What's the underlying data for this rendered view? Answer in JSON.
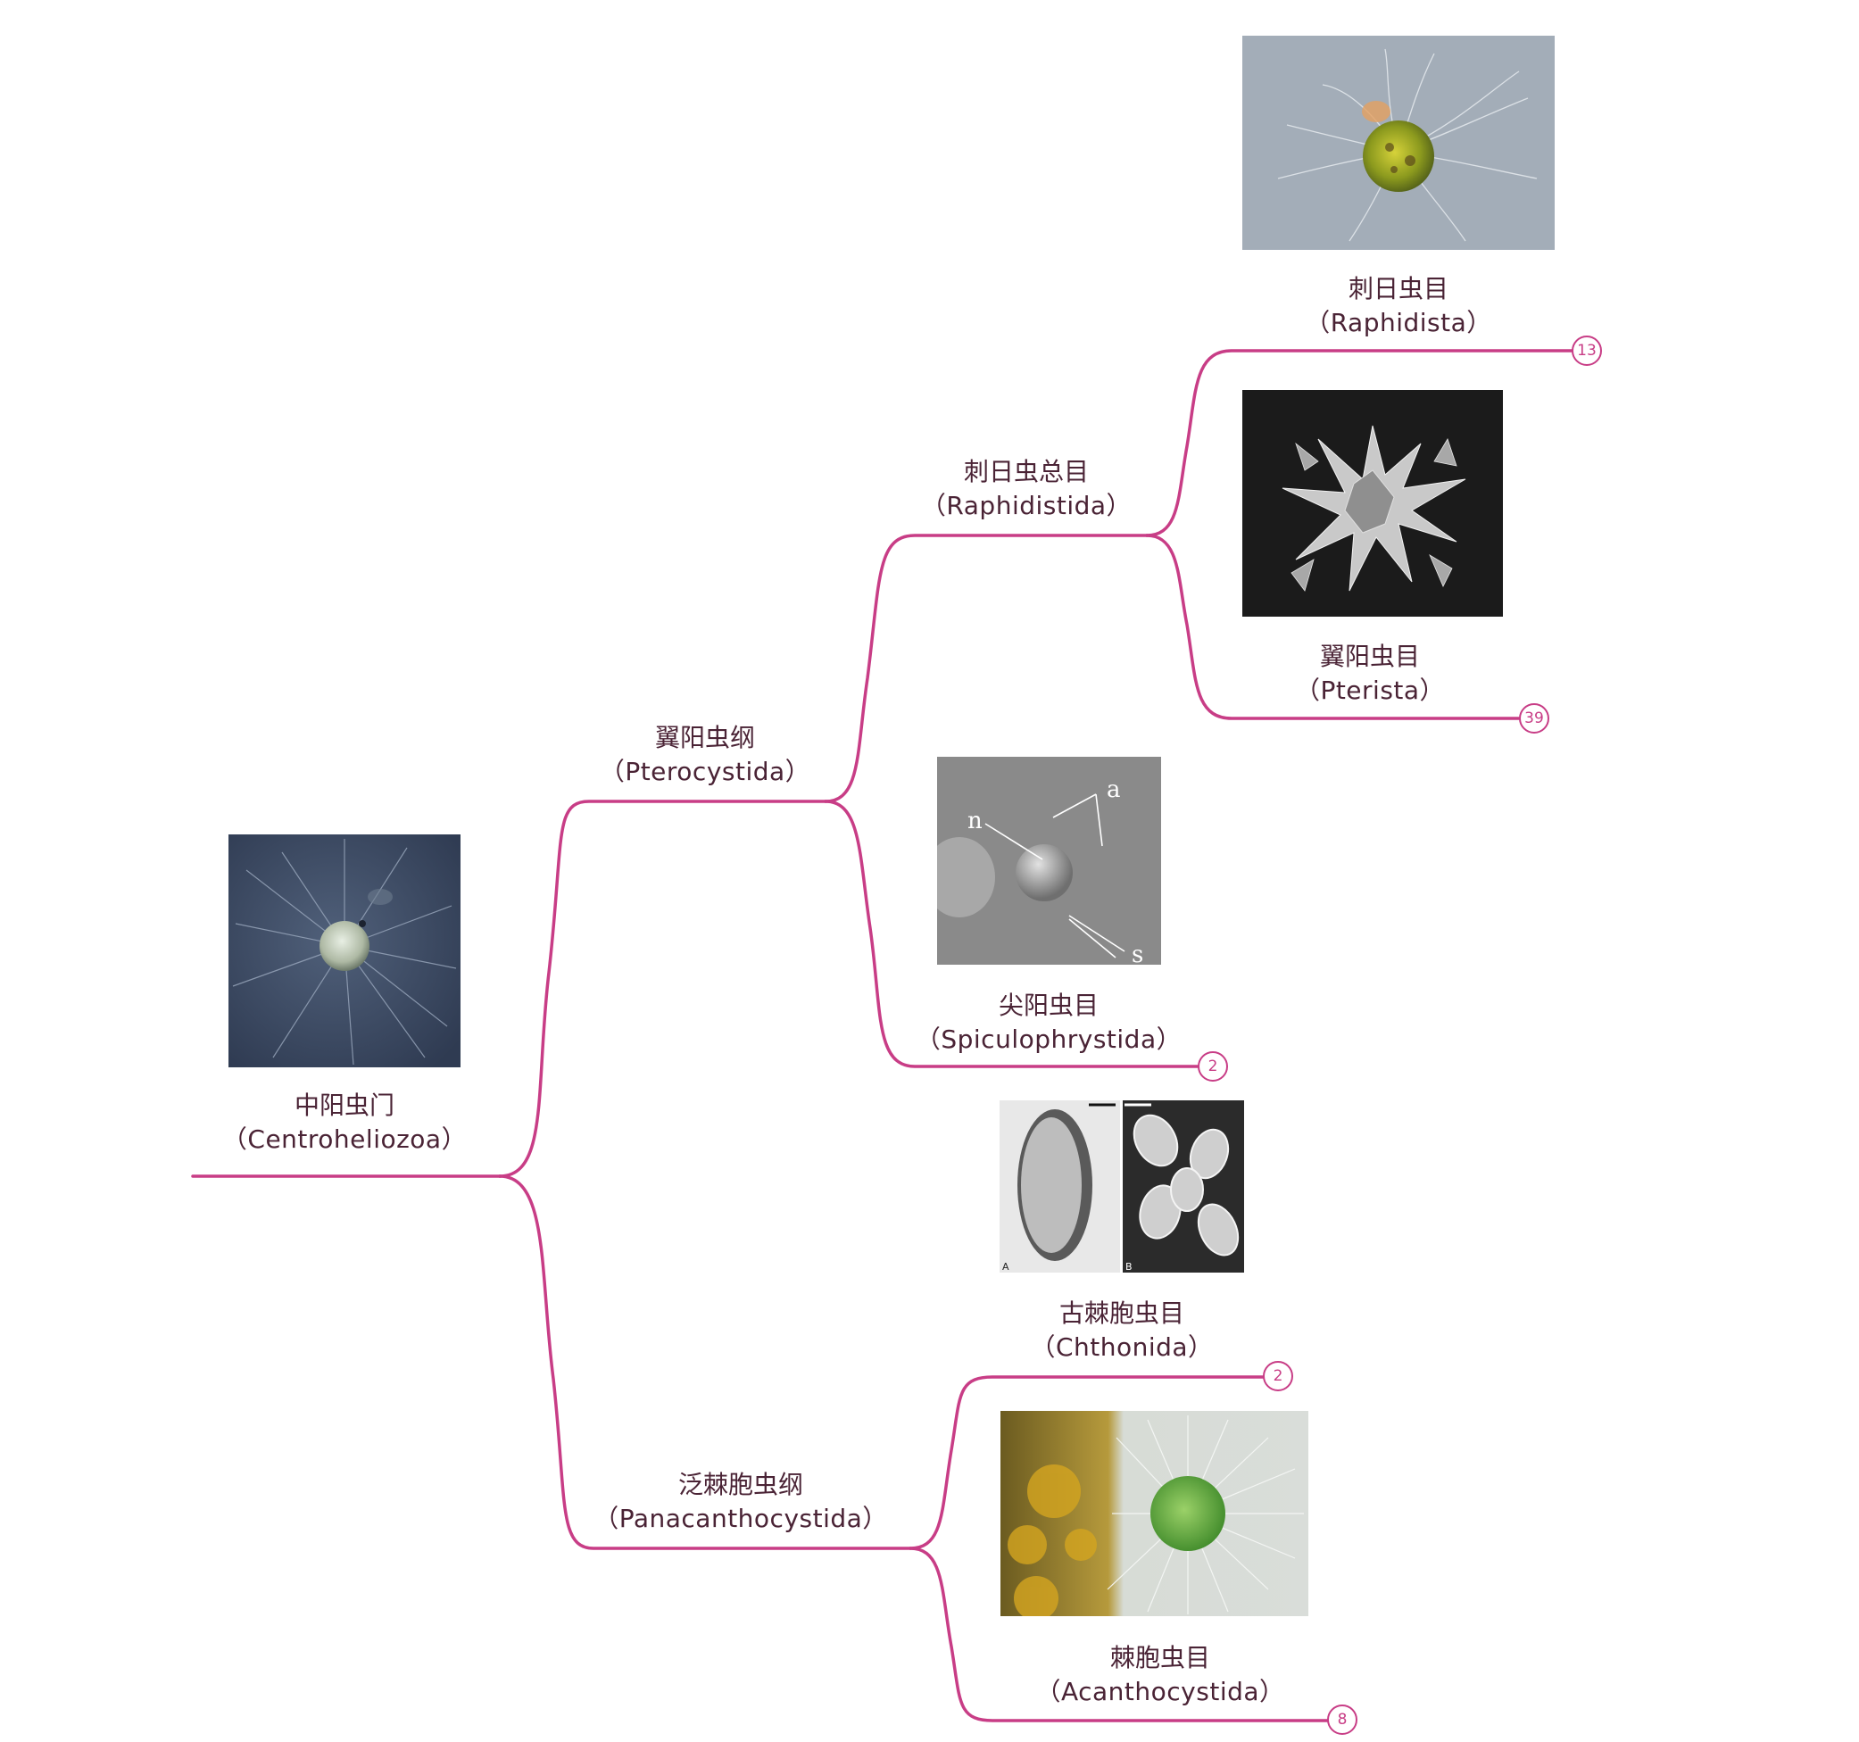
{
  "theme": {
    "line_color": "#c83d86",
    "text_color": "#4a2335",
    "badge_color": "#c83d86"
  },
  "root": {
    "zh": "中阳虫门",
    "en": "（Centroheliozoa）",
    "image": "light-micrograph-centroheliozoan"
  },
  "classes": [
    {
      "zh": "翼阳虫纲",
      "en": "（Pterocystida）"
    },
    {
      "zh": "泛棘胞虫纲",
      "en": "（Panacanthocystida）"
    }
  ],
  "superorder": {
    "zh": "刺日虫总目",
    "en": "（Raphidistida）"
  },
  "orders": [
    {
      "zh": "刺日虫目",
      "en": "（Raphidista）",
      "count": "13",
      "image": "green-heliozoan-micrograph"
    },
    {
      "zh": "翼阳虫目",
      "en": "（Pterista）",
      "count": "39",
      "image": "sem-spiky-scales"
    },
    {
      "zh": "尖阳虫目",
      "en": "（Spiculophrystida）",
      "count": "2",
      "image": "grey-micrograph-labeled-n-a-s"
    },
    {
      "zh": "古棘胞虫目",
      "en": "（Chthonida）",
      "count": "2",
      "image": "two-panel-scale-micrograph"
    },
    {
      "zh": "棘胞虫目",
      "en": "（Acanthocystida）",
      "count": "8",
      "image": "green-radiating-spines-micrograph"
    }
  ],
  "image_labels": {
    "a": "a",
    "n": "n",
    "s": "s",
    "A": "A",
    "B": "B"
  }
}
